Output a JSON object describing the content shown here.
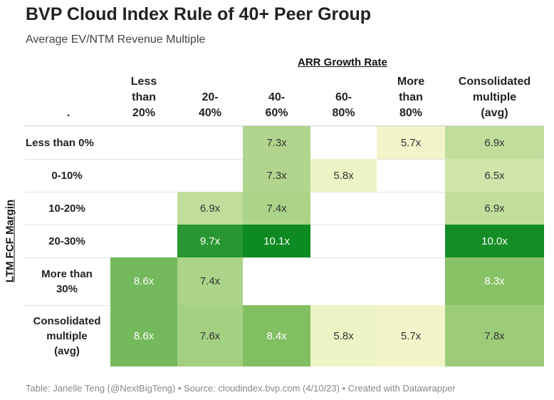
{
  "title": "BVP Cloud Index Rule of 40+ Peer Group",
  "subtitle": "Average EV/NTM Revenue Multiple",
  "col_group_label": "ARR Growth Rate",
  "row_group_label": "LTM FCF Margin",
  "corner_label": ".",
  "footer": "Table: Janelle Teng (@NextBigTeng) • Source: cloudindex.bvp.com (4/10/23) • Created with Datawrapper",
  "chart_data": {
    "type": "heatmap",
    "columns": [
      "Less than 20%",
      "20-40%",
      "40-60%",
      "60-80%",
      "More than 80%",
      "Consolidated multiple (avg)"
    ],
    "column_lines": [
      [
        "Less",
        "than",
        "20%"
      ],
      [
        "20-",
        "40%"
      ],
      [
        "40-",
        "60%"
      ],
      [
        "60-",
        "80%"
      ],
      [
        "More",
        "than",
        "80%"
      ],
      [
        "Consolidated",
        "multiple",
        "(avg)"
      ]
    ],
    "rows": [
      "Less than 0%",
      "0-10%",
      "10-20%",
      "20-30%",
      "More than 30%",
      "Consolidated multiple (avg)"
    ],
    "row_lines": [
      [
        "Less than 0%"
      ],
      [
        "0-10%"
      ],
      [
        "10-20%"
      ],
      [
        "20-30%"
      ],
      [
        "More than",
        "30%"
      ],
      [
        "Consolidated",
        "multiple",
        "(avg)"
      ]
    ],
    "values": [
      [
        null,
        null,
        7.3,
        null,
        5.7,
        6.9
      ],
      [
        null,
        null,
        7.3,
        5.8,
        null,
        6.5
      ],
      [
        null,
        6.9,
        7.4,
        null,
        null,
        6.9
      ],
      [
        null,
        9.7,
        10.1,
        null,
        null,
        10.0
      ],
      [
        8.6,
        7.4,
        null,
        null,
        null,
        8.3
      ],
      [
        8.6,
        7.6,
        8.4,
        5.8,
        5.7,
        7.8
      ]
    ],
    "labels": [
      [
        null,
        null,
        "7.3x",
        null,
        "5.7x",
        "6.9x"
      ],
      [
        null,
        null,
        "7.3x",
        "5.8x",
        null,
        "6.5x"
      ],
      [
        null,
        "6.9x",
        "7.4x",
        null,
        null,
        "6.9x"
      ],
      [
        null,
        "9.7x",
        "10.1x",
        null,
        null,
        "10.0x"
      ],
      [
        "8.6x",
        "7.4x",
        null,
        null,
        null,
        "8.3x"
      ],
      [
        "8.6x",
        "7.6x",
        "8.4x",
        "5.8x",
        "5.7x",
        "7.8x"
      ]
    ],
    "color_scale": {
      "min": 5.7,
      "max": 10.1,
      "low_color": "#f2f5c9",
      "mid_color": "#86c165",
      "high_color": "#0e8a22"
    }
  }
}
